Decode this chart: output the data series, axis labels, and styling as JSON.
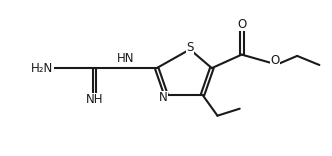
{
  "bg": "#ffffff",
  "lc": "#1a1a1a",
  "lw": 1.5,
  "fs": 8.5,
  "xlim": [
    0,
    10
  ],
  "ylim": [
    0,
    6
  ],
  "S": [
    5.72,
    4.1
  ],
  "C2": [
    4.72,
    3.38
  ],
  "N3": [
    5.0,
    2.35
  ],
  "C4": [
    6.1,
    2.35
  ],
  "C5": [
    6.38,
    3.38
  ],
  "Gc": [
    2.85,
    3.38
  ],
  "NH_mid": [
    3.78,
    3.74
  ],
  "NH2_x": 1.28,
  "NH2_y": 3.38,
  "iNH_x": 2.85,
  "iNH_y": 2.18,
  "Carb_x": 7.28,
  "Carb_y": 3.9,
  "Odbl_x": 7.28,
  "Odbl_y": 4.88,
  "Osng_x": 8.25,
  "Osng_y": 3.55,
  "Eth1_x": 8.95,
  "Eth1_y": 3.85,
  "Eth2_x": 9.62,
  "Eth2_y": 3.5,
  "Me1_x": 6.55,
  "Me1_y": 1.55,
  "Me2_x": 7.22,
  "Me2_y": 1.82
}
